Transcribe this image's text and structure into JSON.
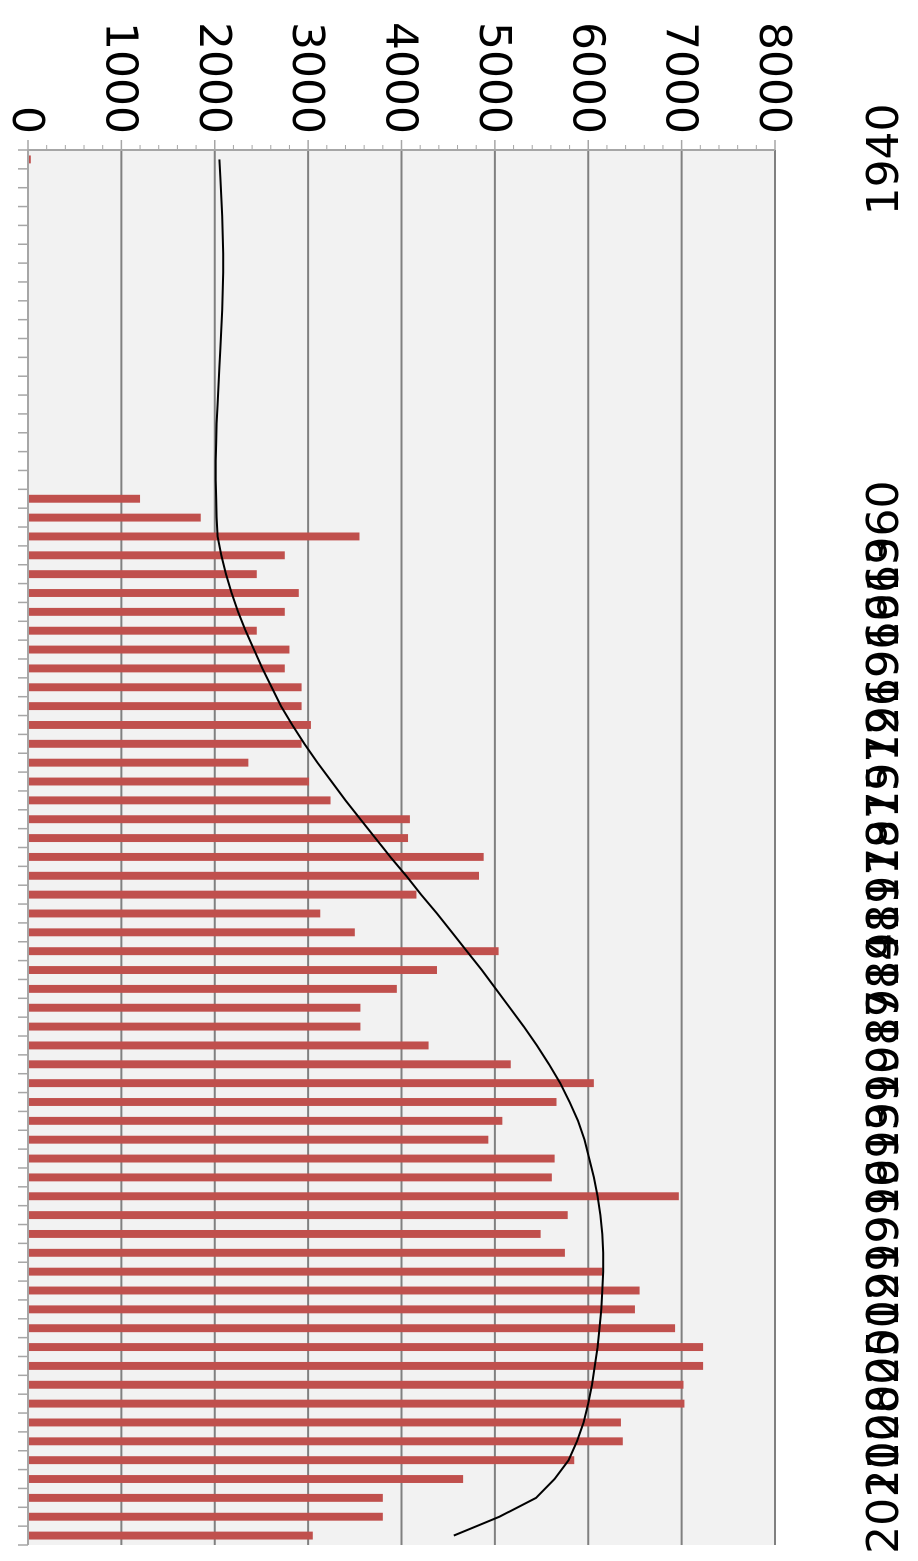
{
  "chart_data": {
    "type": "bar",
    "orientation": "rotated-90",
    "x_tick_labels": [
      "1940",
      "1960",
      "1963",
      "1966",
      "1969",
      "1972",
      "1975",
      "1978",
      "1981",
      "1984",
      "1987",
      "1990",
      "1993",
      "1996",
      "1999",
      "2002",
      "2005",
      "2008",
      "2011"
    ],
    "y_tick_labels": [
      "0",
      "1000",
      "2000",
      "3000",
      "4000",
      "5000",
      "6000",
      "7000",
      "8000"
    ],
    "ylim": [
      0,
      8000
    ],
    "grid": true,
    "legend": "none",
    "colors": {
      "bar": "#c0504d",
      "trend": "#000000",
      "plot_bg": "#f2f2f2",
      "grid": "#808080"
    },
    "x": [
      1940,
      1941,
      1942,
      1943,
      1944,
      1945,
      1946,
      1947,
      1948,
      1949,
      1950,
      1951,
      1952,
      1953,
      1954,
      1955,
      1956,
      1957,
      1958,
      1959,
      1960,
      1961,
      1962,
      1963,
      1964,
      1965,
      1966,
      1967,
      1968,
      1969,
      1970,
      1971,
      1972,
      1973,
      1974,
      1975,
      1976,
      1977,
      1978,
      1979,
      1980,
      1981,
      1982,
      1983,
      1984,
      1985,
      1986,
      1987,
      1988,
      1989,
      1990,
      1991,
      1992,
      1993,
      1994,
      1995,
      1996,
      1997,
      1998,
      1999,
      2000,
      2001,
      2002,
      2003,
      2004,
      2005,
      2006,
      2007,
      2008,
      2009,
      2010,
      2011,
      2012,
      2013
    ],
    "series": [
      {
        "values": [
          30,
          0,
          0,
          0,
          0,
          0,
          0,
          0,
          0,
          0,
          0,
          0,
          0,
          0,
          0,
          0,
          0,
          0,
          1200,
          1850,
          3550,
          2750,
          2450,
          2900,
          2750,
          2450,
          2800,
          2750,
          2930,
          2930,
          3030,
          2930,
          2360,
          3010,
          3240,
          4090,
          4070,
          4880,
          4830,
          4160,
          3130,
          3500,
          5040,
          4380,
          3950,
          3560,
          3560,
          4290,
          5170,
          6060,
          5660,
          5080,
          4930,
          5640,
          5610,
          6970,
          5780,
          5490,
          5750,
          6150,
          6550,
          6500,
          6930,
          7230,
          7230,
          7020,
          7030,
          6350,
          6370,
          5850,
          4660,
          3800,
          3800,
          3050
        ]
      },
      {
        "type": "line",
        "values": [
          2050,
          2060,
          2070,
          2080,
          2085,
          2090,
          2090,
          2085,
          2080,
          2070,
          2060,
          2050,
          2040,
          2030,
          2020,
          2015,
          2010,
          2010,
          2015,
          2020,
          2030,
          2070,
          2120,
          2180,
          2250,
          2330,
          2420,
          2510,
          2610,
          2710,
          2830,
          2960,
          3100,
          3250,
          3400,
          3560,
          3720,
          3880,
          4050,
          4210,
          4380,
          4540,
          4700,
          4860,
          5010,
          5160,
          5310,
          5450,
          5580,
          5700,
          5800,
          5890,
          5960,
          6010,
          6060,
          6100,
          6130,
          6150,
          6160,
          6160,
          6150,
          6140,
          6120,
          6100,
          6070,
          6040,
          6000,
          5950,
          5880,
          5790,
          5640,
          5440,
          5050,
          4560
        ]
      }
    ]
  }
}
